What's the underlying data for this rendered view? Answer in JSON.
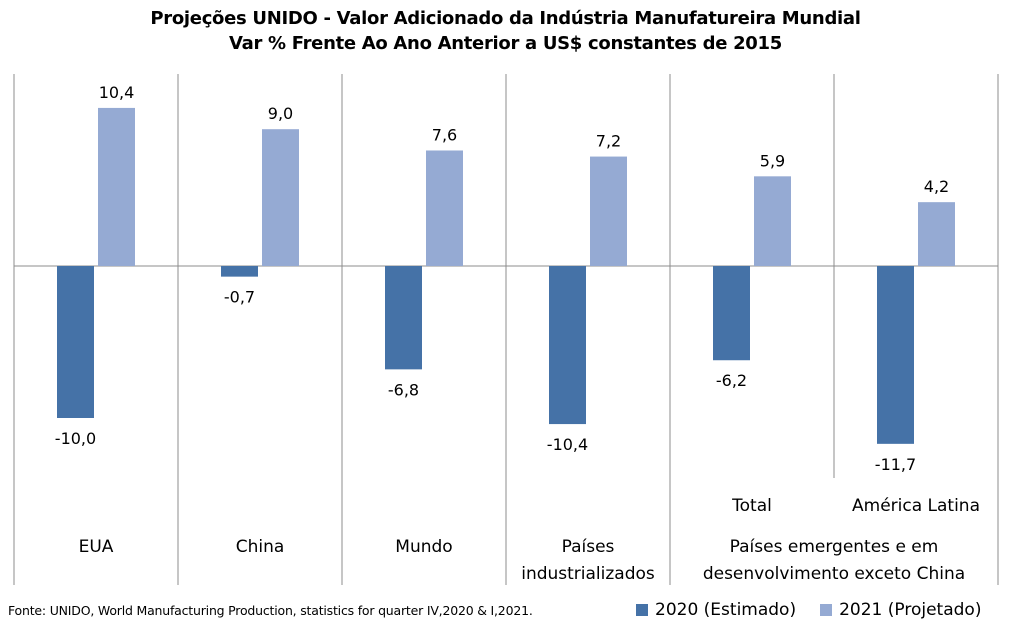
{
  "chart_data": {
    "type": "bar",
    "title": "Projeções UNIDO - Valor Adicionado da Indústria Manufatureira Mundial",
    "subtitle": "Var % Frente Ao Ano Anterior a US$ constantes de 2015",
    "categories": [
      "EUA",
      "China",
      "Mundo",
      "Países industrializados",
      "Total",
      "América Latina"
    ],
    "category_group": {
      "label": "Países emergentes e em desenvolvimento exceto China",
      "members": [
        "Total",
        "América Latina"
      ]
    },
    "series": [
      {
        "name": "2020 (Estimado)",
        "color": "#4572a7",
        "values": [
          -10.0,
          -0.7,
          -6.8,
          -10.4,
          -6.2,
          -11.7
        ],
        "labels": [
          "-10,0",
          "-0,7",
          "-6,8",
          "-10,4",
          "-6,2",
          "-11,7"
        ]
      },
      {
        "name": "2021 (Projetado)",
        "color": "#95aad3",
        "values": [
          10.4,
          9.0,
          7.6,
          7.2,
          5.9,
          4.2
        ],
        "labels": [
          "10,4",
          "9,0",
          "7,6",
          "7,2",
          "5,9",
          "4,2"
        ]
      }
    ],
    "xlabel": "",
    "ylabel": "",
    "ylim": [
      -14,
      12.6
    ],
    "grid": false,
    "legend_position": "bottom-right",
    "axis_color": "#8c8c8c",
    "source": "Fonte: UNIDO, World Manufacturing Production,  statistics for quarter IV,2020 & I,2021."
  }
}
